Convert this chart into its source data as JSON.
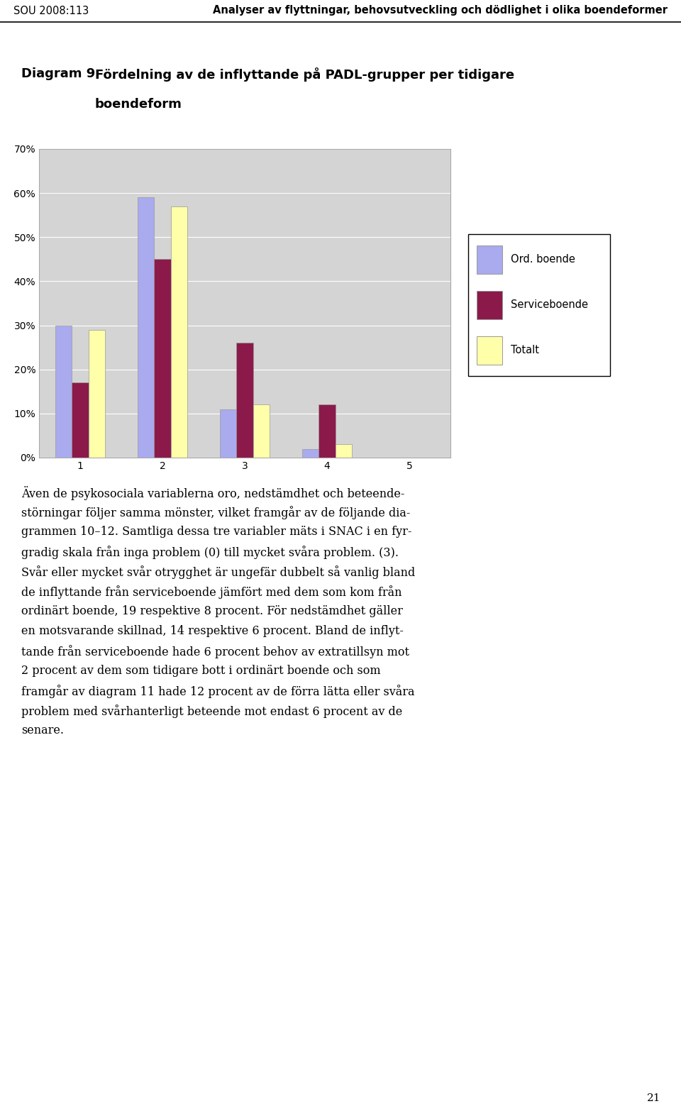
{
  "header_left": "SOU 2008:113",
  "header_right": "Analyser av flyttningar, behovsutveckling och dödlighet i olika boendeformer",
  "diagram_label": "Diagram 9",
  "diagram_title_1": "Fördelning av de inflyttande på PADL-grupper per tidigare",
  "diagram_title_2": "boendeform",
  "categories": [
    1,
    2,
    3,
    4,
    5
  ],
  "series": {
    "Ord. boende": [
      0.3,
      0.59,
      0.11,
      0.02,
      0.0
    ],
    "Serviceboende": [
      0.17,
      0.45,
      0.26,
      0.12,
      0.0
    ],
    "Totalt": [
      0.29,
      0.57,
      0.12,
      0.03,
      0.0
    ]
  },
  "colors": {
    "Ord. boende": "#aaaaee",
    "Serviceboende": "#8b1a4a",
    "Totalt": "#ffffaa"
  },
  "bar_edge_color": "#999999",
  "ylim": [
    0,
    0.7
  ],
  "yticks": [
    0.0,
    0.1,
    0.2,
    0.3,
    0.4,
    0.5,
    0.6,
    0.7
  ],
  "ytick_labels": [
    "0%",
    "10%",
    "20%",
    "30%",
    "40%",
    "50%",
    "60%",
    "70%"
  ],
  "chart_bg": "#d4d4d4",
  "chart_border": "#aaaaaa",
  "page_bg": "#ffffff",
  "body_text_lines": [
    "Även de psykosociala variablerna oro, nedstämdhet och beteende-",
    "störningar följer samma mönster, vilket framgår av de följande dia-",
    "grammen 10–12. Samtliga dessa tre variabler mäts i SNAC i en fyr-",
    "gradig skala från inga problem (0) till mycket svåra problem. (3).",
    "Svår eller mycket svår otrygghet är ungefär dubbelt så vanlig bland",
    "de inflyttande från serviceboende jämfört med dem som kom från",
    "ordinärt boende, 19 respektive 8 procent. För nedstämdhet gäller",
    "en motsvarande skillnad, 14 respektive 6 procent. Bland de inflyt-",
    "tande från serviceboende hade 6 procent behov av extratillsyn mot",
    "2 procent av dem som tidigare bott i ordinärt boende och som",
    "framgår av diagram 11 hade 12 procent av de förra lätta eller svåra",
    "problem med svårhanterligt beteende mot endast 6 procent av de",
    "senare."
  ],
  "page_number": "21"
}
